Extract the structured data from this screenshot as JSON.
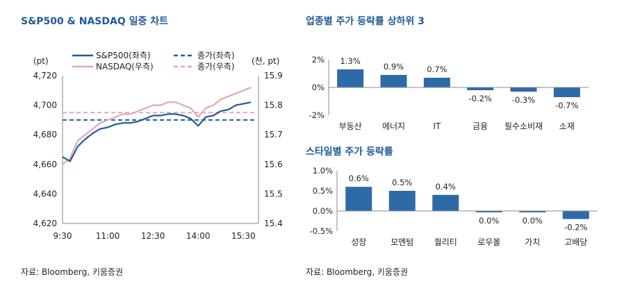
{
  "left_panel": {
    "title": "S&P500 & NASDAQ 일중 차트",
    "source": "자료: Bloomberg, 키움증권"
  },
  "right_panel": {
    "title_top": "업종별 주가 등락률 상하위 3",
    "title_bottom": "스타일별 주가 등락률",
    "source": "자료: Bloomberg, 키움증권"
  },
  "colors": {
    "sp500": "#1f5b99",
    "nasdaq": "#e3a6bb",
    "bar": "#2f6aa8",
    "title": "#1f5b99"
  },
  "chart_data": [
    {
      "type": "line",
      "title": "S&P500 & NASDAQ 일중 차트",
      "left_axis_unit": "(pt)",
      "right_axis_unit": "(천, pt)",
      "x_ticks": [
        "9:30",
        "11:00",
        "12:30",
        "14:00",
        "15:30"
      ],
      "y_left": {
        "range": [
          4620,
          4720
        ],
        "ticks": [
          "4,720",
          "4,700",
          "4,680",
          "4,660",
          "4,640",
          "4,620"
        ],
        "tick_values": [
          4720,
          4700,
          4680,
          4660,
          4640,
          4620
        ]
      },
      "y_right": {
        "range": [
          15.4,
          15.9
        ],
        "ticks": [
          "15.9",
          "15.8",
          "15.7",
          "15.6",
          "15.5",
          "15.4"
        ],
        "tick_values": [
          15.9,
          15.8,
          15.7,
          15.6,
          15.5,
          15.4
        ]
      },
      "legend": [
        "S&P500(좌측)",
        "종가(좌측)",
        "NASDAQ(우측)",
        "종가(우측)"
      ],
      "series": [
        {
          "name": "S&P500(좌측)",
          "axis": "left",
          "style": "solid",
          "color": "#1f5b99",
          "x": [
            "9:30",
            "9:45",
            "10:00",
            "10:15",
            "10:30",
            "10:45",
            "11:00",
            "11:15",
            "11:30",
            "11:45",
            "12:00",
            "12:15",
            "12:30",
            "12:45",
            "13:00",
            "13:15",
            "13:30",
            "13:45",
            "14:00",
            "14:15",
            "14:30",
            "14:45",
            "15:00",
            "15:15",
            "15:30",
            "15:45"
          ],
          "values": [
            4665,
            4662,
            4672,
            4677,
            4681,
            4684,
            4685,
            4687,
            4688,
            4688,
            4689,
            4691,
            4693,
            4693,
            4694,
            4694,
            4693,
            4691,
            4686,
            4692,
            4693,
            4696,
            4697,
            4700,
            4701,
            4702
          ]
        },
        {
          "name": "NASDAQ(우측)",
          "axis": "right",
          "style": "solid",
          "color": "#e3a6bb",
          "x": [
            "9:30",
            "9:45",
            "10:00",
            "10:15",
            "10:30",
            "10:45",
            "11:00",
            "11:15",
            "11:30",
            "11:45",
            "12:00",
            "12:15",
            "12:30",
            "12:45",
            "13:00",
            "13:15",
            "13:30",
            "13:45",
            "14:00",
            "14:15",
            "14:30",
            "14:45",
            "15:00",
            "15:15",
            "15:30",
            "15:45"
          ],
          "values": [
            15.6,
            15.62,
            15.68,
            15.7,
            15.72,
            15.74,
            15.75,
            15.76,
            15.77,
            15.77,
            15.78,
            15.79,
            15.8,
            15.8,
            15.81,
            15.81,
            15.8,
            15.79,
            15.76,
            15.79,
            15.8,
            15.82,
            15.83,
            15.84,
            15.85,
            15.86
          ]
        },
        {
          "name": "종가(좌측)",
          "axis": "left",
          "style": "dashed",
          "color": "#1f5b99",
          "value": 4690
        },
        {
          "name": "종가(우측)",
          "axis": "right",
          "style": "dashed",
          "color": "#e3a6bb",
          "value": 15.775
        }
      ]
    },
    {
      "type": "bar",
      "title": "업종별 주가 등락률 상하위 3",
      "categories": [
        "부동산",
        "에너지",
        "IT",
        "금융",
        "필수소비재",
        "소재"
      ],
      "values": [
        1.3,
        0.9,
        0.7,
        -0.2,
        -0.3,
        -0.7
      ],
      "labels": [
        "1.3%",
        "0.9%",
        "0.7%",
        "-0.2%",
        "-0.3%",
        "-0.7%"
      ],
      "y_ticks": [
        "2%",
        "0%",
        "-2%"
      ],
      "y_tick_values": [
        2,
        0,
        -2
      ],
      "ylim": [
        -2,
        2
      ]
    },
    {
      "type": "bar",
      "title": "스타일별 주가 등락률",
      "categories": [
        "성장",
        "모멘텀",
        "퀄리티",
        "로우볼",
        "가치",
        "고배당"
      ],
      "values": [
        0.6,
        0.5,
        0.4,
        0.0,
        0.0,
        -0.2
      ],
      "labels": [
        "0.6%",
        "0.5%",
        "0.4%",
        "0.0%",
        "0.0%",
        "-0.2%"
      ],
      "y_ticks": [
        "1.0%",
        "0.5%",
        "0.0%",
        "-0.5%"
      ],
      "y_tick_values": [
        1.0,
        0.5,
        0.0,
        -0.5
      ],
      "ylim": [
        -0.5,
        1.0
      ]
    }
  ]
}
